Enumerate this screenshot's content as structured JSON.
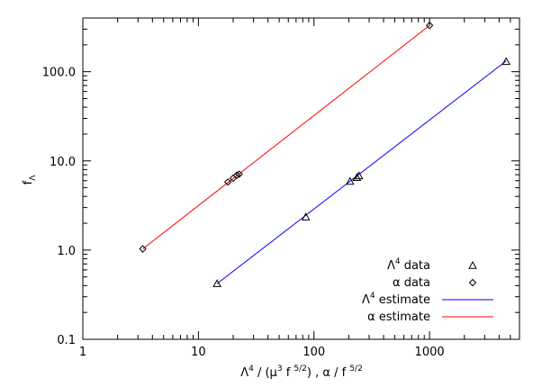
{
  "chart_data": {
    "type": "scatter",
    "xscale": "log",
    "yscale": "log",
    "xlim": [
      1,
      6000
    ],
    "ylim": [
      0.1,
      400
    ],
    "x_ticks": [
      {
        "value": 1,
        "label": "1"
      },
      {
        "value": 10,
        "label": "10"
      },
      {
        "value": 100,
        "label": "100"
      },
      {
        "value": 1000,
        "label": "1000"
      }
    ],
    "y_ticks": [
      {
        "value": 0.1,
        "label": "0.1"
      },
      {
        "value": 1,
        "label": "1.0"
      },
      {
        "value": 10,
        "label": "10.0"
      },
      {
        "value": 100,
        "label": "100.0"
      }
    ],
    "xlabel": {
      "part1": "Λ",
      "sup1": "4",
      "part2": " / (μ",
      "sup2": "3",
      "part3": " f ",
      "sup3": "5/2",
      "part4": ") , α / f ",
      "sup4": "5/2"
    },
    "ylabel": {
      "main": "f",
      "sub": "Λ"
    },
    "series": [
      {
        "name": "Λ4 data",
        "marker": "triangle",
        "color": "#000000",
        "points": [
          [
            14.5,
            0.42
          ],
          [
            85,
            2.35
          ],
          [
            205,
            5.9
          ],
          [
            235,
            6.5
          ],
          [
            245,
            6.8
          ],
          [
            4600,
            130
          ]
        ]
      },
      {
        "name": "α data",
        "marker": "diamond",
        "color": "#000000",
        "points": [
          [
            3.3,
            1.03
          ],
          [
            18,
            5.8
          ],
          [
            20,
            6.4
          ],
          [
            21.5,
            6.9
          ],
          [
            22.5,
            7.1
          ],
          [
            1000,
            330
          ]
        ]
      }
    ],
    "lines": [
      {
        "name": "Λ4 estimate",
        "color": "#0000ff",
        "from": [
          14.5,
          0.42
        ],
        "to": [
          4600,
          132
        ]
      },
      {
        "name": "α estimate",
        "color": "#ff0000",
        "from": [
          3.3,
          1.03
        ],
        "to": [
          1000,
          330
        ]
      }
    ],
    "legend": {
      "position": "bottom-right",
      "entries": [
        {
          "label_main": "Λ",
          "label_sup": "4",
          "label_rest": " data",
          "kind": "triangle",
          "color": "#000000"
        },
        {
          "label_main": "α",
          "label_sup": "",
          "label_rest": " data",
          "kind": "diamond",
          "color": "#000000"
        },
        {
          "label_main": "Λ",
          "label_sup": "4",
          "label_rest": " estimate",
          "kind": "line",
          "color": "#0000ff"
        },
        {
          "label_main": "α",
          "label_sup": "",
          "label_rest": " estimate",
          "kind": "line",
          "color": "#ff0000"
        }
      ]
    }
  }
}
